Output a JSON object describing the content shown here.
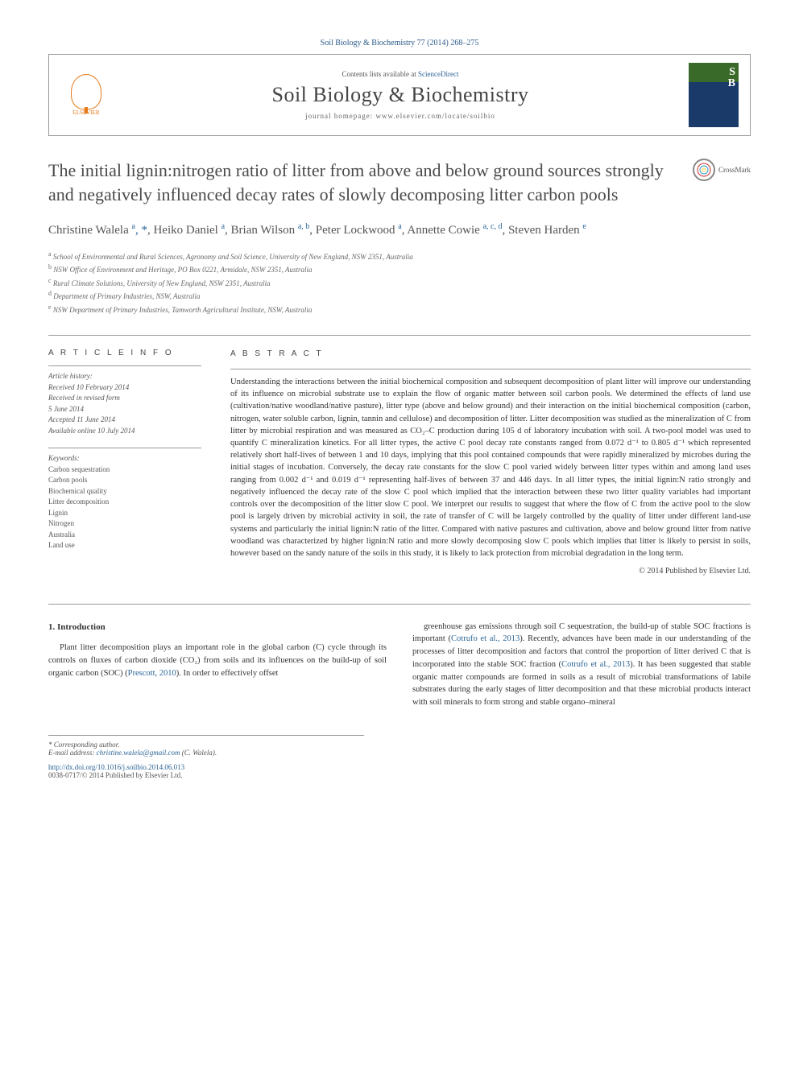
{
  "journal_ref": "Soil Biology & Biochemistry 77 (2014) 268–275",
  "header": {
    "contents_prefix": "Contents lists available at ",
    "contents_link": "ScienceDirect",
    "journal_name": "Soil Biology & Biochemistry",
    "homepage_prefix": "journal homepage: ",
    "homepage_url": "www.elsevier.com/locate/soilbio",
    "publisher": "ELSEVIER",
    "cover_letters": {
      "s": "S",
      "b": "B"
    }
  },
  "crossmark_label": "CrossMark",
  "title": "The initial lignin:nitrogen ratio of litter from above and below ground sources strongly and negatively influenced decay rates of slowly decomposing litter carbon pools",
  "authors_html": "Christine Walela <sup>a</sup><span class='corr'>, *</span>, Heiko Daniel <sup>a</sup>, Brian Wilson <sup>a, b</sup>, Peter Lockwood <sup>a</sup>, Annette Cowie <sup>a, c, d</sup>, Steven Harden <sup>e</sup>",
  "affiliations": [
    {
      "sup": "a",
      "text": "School of Environmental and Rural Sciences, Agronomy and Soil Science, University of New England, NSW 2351, Australia"
    },
    {
      "sup": "b",
      "text": "NSW Office of Environment and Heritage, PO Box 0221, Armidale, NSW 2351, Australia"
    },
    {
      "sup": "c",
      "text": "Rural Climate Solutions, University of New England, NSW 2351, Australia"
    },
    {
      "sup": "d",
      "text": "Department of Primary Industries, NSW, Australia"
    },
    {
      "sup": "e",
      "text": "NSW Department of Primary Industries, Tamworth Agricultural Institute, NSW, Australia"
    }
  ],
  "info": {
    "head": "A R T I C L E  I N F O",
    "history_label": "Article history:",
    "history": [
      "Received 10 February 2014",
      "Received in revised form",
      "5 June 2014",
      "Accepted 11 June 2014",
      "Available online 10 July 2014"
    ],
    "keywords_label": "Keywords:",
    "keywords": [
      "Carbon sequestration",
      "Carbon pools",
      "Biochemical quality",
      "Litter decomposition",
      "Lignin",
      "Nitrogen",
      "Australia",
      "Land use"
    ]
  },
  "abstract": {
    "head": "A B S T R A C T",
    "text": "Understanding the interactions between the initial biochemical composition and subsequent decomposition of plant litter will improve our understanding of its influence on microbial substrate use to explain the flow of organic matter between soil carbon pools. We determined the effects of land use (cultivation/native woodland/native pasture), litter type (above and below ground) and their interaction on the initial biochemical composition (carbon, nitrogen, water soluble carbon, lignin, tannin and cellulose) and decomposition of litter. Litter decomposition was studied as the mineralization of C from litter by microbial respiration and was measured as CO₂–C production during 105 d of laboratory incubation with soil. A two-pool model was used to quantify C mineralization kinetics. For all litter types, the active C pool decay rate constants ranged from 0.072 d⁻¹ to 0.805 d⁻¹ which represented relatively short half-lives of between 1 and 10 days, implying that this pool contained compounds that were rapidly mineralized by microbes during the initial stages of incubation. Conversely, the decay rate constants for the slow C pool varied widely between litter types within and among land uses ranging from 0.002 d⁻¹ and 0.019 d⁻¹ representing half-lives of between 37 and 446 days. In all litter types, the initial lignin:N ratio strongly and negatively influenced the decay rate of the slow C pool which implied that the interaction between these two litter quality variables had important controls over the decomposition of the litter slow C pool. We interpret our results to suggest that where the flow of C from the active pool to the slow pool is largely driven by microbial activity in soil, the rate of transfer of C will be largely controlled by the quality of litter under different land-use systems and particularly the initial lignin:N ratio of the litter. Compared with native pastures and cultivation, above and below ground litter from native woodland was characterized by higher lignin:N ratio and more slowly decomposing slow C pools which implies that litter is likely to persist in soils, however based on the sandy nature of the soils in this study, it is likely to lack protection from microbial degradation in the long term.",
    "copyright": "© 2014 Published by Elsevier Ltd."
  },
  "body": {
    "section_num": "1.",
    "section_title": "Introduction",
    "col1_p1_a": "Plant litter decomposition plays an important role in the global carbon (C) cycle through its controls on fluxes of carbon dioxide (CO₂) from soils and its influences on the build-up of soil organic carbon (SOC) (",
    "col1_ref1": "Prescott, 2010",
    "col1_p1_b": "). In order to effectively offset",
    "col2_p1_a": "greenhouse gas emissions through soil C sequestration, the build-up of stable SOC fractions is important (",
    "col2_ref1": "Cotrufo et al., 2013",
    "col2_p1_b": "). Recently, advances have been made in our understanding of the processes of litter decomposition and factors that control the proportion of litter derived C that is incorporated into the stable SOC fraction (",
    "col2_ref2": "Cotrufo et al., 2013",
    "col2_p1_c": "). It has been suggested that stable organic matter compounds are formed in soils as a result of microbial transformations of labile substrates during the early stages of litter decomposition and that these microbial products interact with soil minerals to form strong and stable organo–mineral"
  },
  "footer": {
    "corr_label": "* Corresponding author.",
    "email_label": "E-mail address: ",
    "email": "christine.walela@gmail.com",
    "email_name": " (C. Walela).",
    "doi": "http://dx.doi.org/10.1016/j.soilbio.2014.06.013",
    "issn": "0038-0717/© 2014 Published by Elsevier Ltd."
  }
}
